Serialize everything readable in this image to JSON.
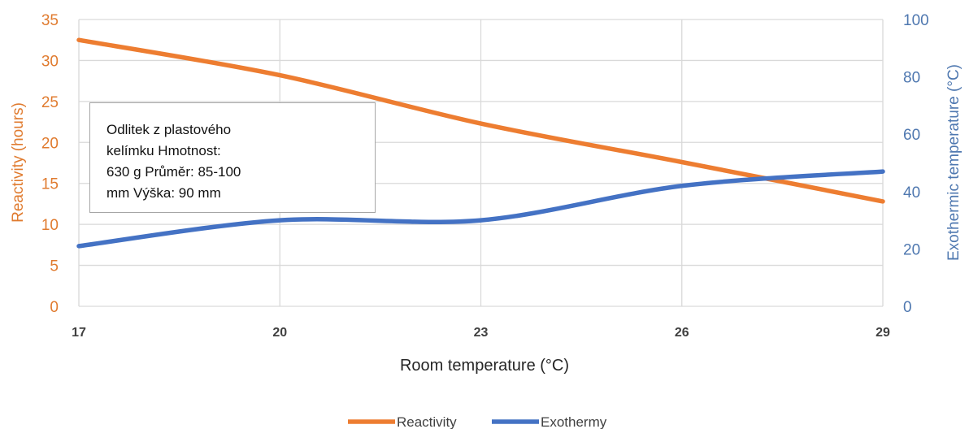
{
  "chart_data": {
    "type": "line",
    "x": [
      17,
      20,
      23,
      26,
      29
    ],
    "xlabel": "Room temperature (°C)",
    "ylabel_left": "Reactivity (hours)",
    "ylabel_right": "Exothermic temperature (°C)",
    "xlim": [
      17,
      29
    ],
    "ylim_left": [
      0,
      35
    ],
    "ylim_right": [
      0,
      100
    ],
    "yticks_left": [
      0,
      5,
      10,
      15,
      20,
      25,
      30,
      35
    ],
    "yticks_right": [
      0,
      20,
      40,
      60,
      80,
      100
    ],
    "xticks": [
      17,
      20,
      23,
      26,
      29
    ],
    "grid": true,
    "legend_position": "bottom",
    "series": [
      {
        "name": "Reactivity",
        "axis": "left",
        "color": "#ed7d31",
        "values": [
          32.5,
          28.2,
          22.3,
          17.6,
          12.8
        ]
      },
      {
        "name": "Exothermy",
        "axis": "right",
        "color": "#4472c4",
        "values": [
          21,
          30,
          30,
          42,
          47
        ]
      }
    ],
    "annotation": "Odlitek z plastového\nkelímku Hmotnost:\n630 g Průměr: 85-100\nmm Výška: 90 mm"
  }
}
